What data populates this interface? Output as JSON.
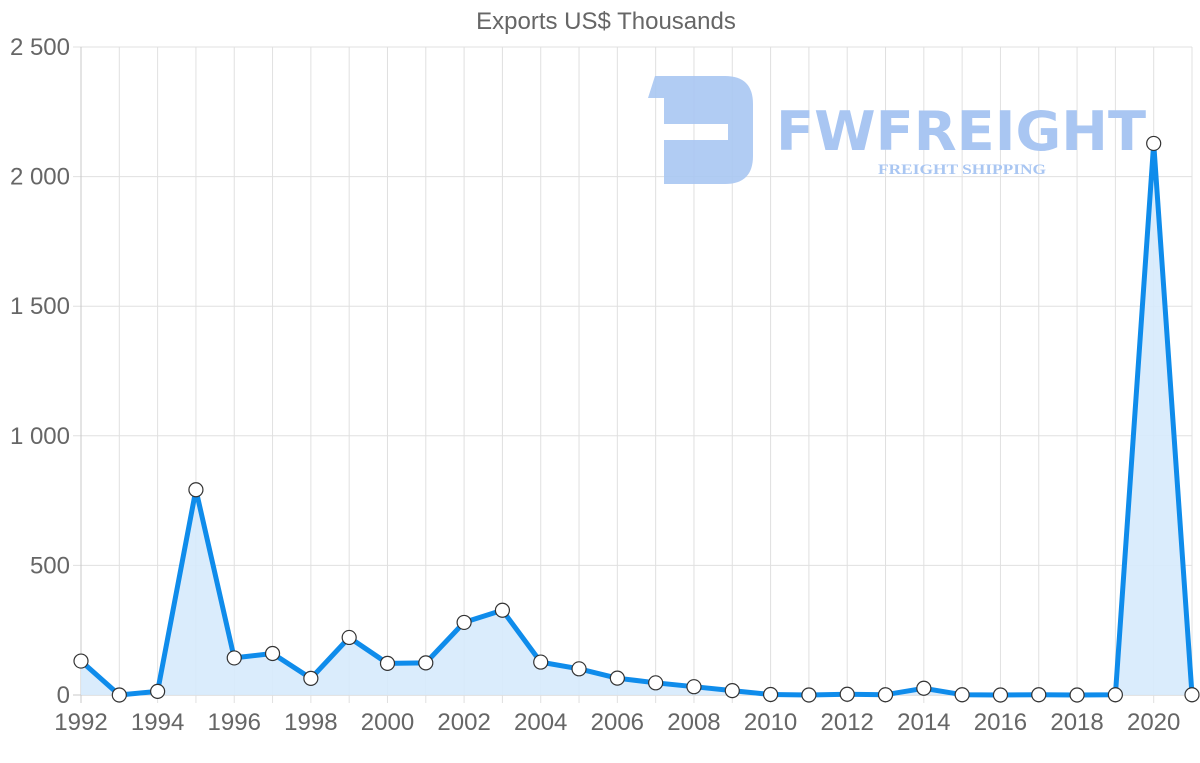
{
  "chart_data": {
    "type": "line",
    "title": "Exports US$ Thousands",
    "xlabel": "",
    "ylabel": "",
    "x": [
      1992,
      1993,
      1994,
      1995,
      1996,
      1997,
      1998,
      1999,
      2000,
      2001,
      2002,
      2003,
      2004,
      2005,
      2006,
      2007,
      2008,
      2009,
      2010,
      2011,
      2012,
      2013,
      2014,
      2015,
      2016,
      2017,
      2018,
      2019,
      2020,
      2021
    ],
    "series": [
      {
        "name": "Exports US$ Thousands",
        "values": [
          131,
          0,
          14,
          792,
          143,
          160,
          64,
          222,
          122,
          124,
          280,
          327,
          127,
          101,
          65,
          47,
          32,
          17,
          2,
          0,
          3,
          1,
          26,
          1,
          0,
          1,
          0,
          1,
          2128,
          1
        ],
        "color": "#0f8ceb",
        "fill": "#d6eafc"
      }
    ],
    "ylim": [
      0,
      2500
    ],
    "yticks": [
      0,
      500,
      1000,
      1500,
      2000,
      2500
    ],
    "ytick_labels": [
      "0",
      "500",
      "1 000",
      "1 500",
      "2 000",
      "2 500"
    ],
    "xticks": [
      1992,
      1994,
      1996,
      1998,
      2000,
      2002,
      2004,
      2006,
      2008,
      2010,
      2012,
      2014,
      2016,
      2018,
      2020
    ],
    "grid": true,
    "legend": "none",
    "filled_area": true,
    "point_markers": "white circles with dark outline"
  },
  "watermark": {
    "brand": "FWFREIGHT",
    "tagline": "FREIGHT SHIPPING",
    "color": "#a9c6f2"
  },
  "colors": {
    "line": "#0f8ceb",
    "area": "#d6eafc",
    "grid": "#e0e0e0",
    "axis": "#c8c8c8",
    "text": "#666666"
  }
}
